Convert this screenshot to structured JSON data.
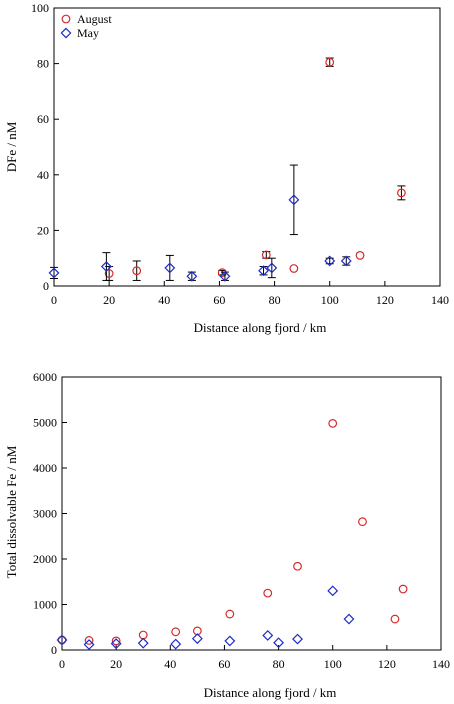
{
  "chart_data": [
    {
      "type": "scatter",
      "title": "",
      "xlabel": "Distance along fjord / km",
      "ylabel": "DFe / nM",
      "xlim": [
        0,
        140
      ],
      "ylim": [
        0,
        100
      ],
      "xticks": [
        0,
        20,
        40,
        60,
        80,
        100,
        120,
        140
      ],
      "yticks": [
        0,
        20,
        40,
        60,
        80,
        100
      ],
      "legend": "top-left",
      "series": [
        {
          "name": "August",
          "marker": "circle",
          "color": "#d42a2a",
          "points": [
            {
              "x": 20,
              "y": 4.5,
              "err": 2.5
            },
            {
              "x": 30,
              "y": 5.5,
              "err": 3.5
            },
            {
              "x": 61,
              "y": 4.8,
              "err": 0.8
            },
            {
              "x": 77,
              "y": 11.2,
              "err": 1.2
            },
            {
              "x": 87,
              "y": 6.3,
              "err": 0
            },
            {
              "x": 100,
              "y": 80.5,
              "err": 1.5
            },
            {
              "x": 111,
              "y": 11,
              "err": 0
            },
            {
              "x": 126,
              "y": 33.5,
              "err": 2.5
            }
          ]
        },
        {
          "name": "May",
          "marker": "diamond",
          "color": "#1f2cc8",
          "points": [
            {
              "x": 0,
              "y": 4.7,
              "err": 2
            },
            {
              "x": 19,
              "y": 7,
              "err": 5
            },
            {
              "x": 42,
              "y": 6.5,
              "err": 4.5
            },
            {
              "x": 50,
              "y": 3.5,
              "err": 1.5
            },
            {
              "x": 62,
              "y": 3.5,
              "err": 1.5
            },
            {
              "x": 76,
              "y": 5.5,
              "err": 1.5
            },
            {
              "x": 79,
              "y": 6.5,
              "err": 3.5
            },
            {
              "x": 87,
              "y": 31,
              "err": 12.5
            },
            {
              "x": 100,
              "y": 9,
              "err": 1
            },
            {
              "x": 106,
              "y": 9,
              "err": 1.5
            }
          ]
        }
      ]
    },
    {
      "type": "scatter",
      "title": "",
      "xlabel": "Distance along fjord / km",
      "ylabel": "Total dissolvable Fe / nM",
      "xlim": [
        0,
        140
      ],
      "ylim": [
        0,
        6000
      ],
      "xticks": [
        0,
        20,
        40,
        60,
        80,
        100,
        120,
        140
      ],
      "yticks": [
        0,
        1000,
        2000,
        3000,
        4000,
        5000,
        6000
      ],
      "series": [
        {
          "marker": "circle",
          "color": "#d42a2a",
          "points": [
            {
              "x": 0,
              "y": 220
            },
            {
              "x": 10,
              "y": 210
            },
            {
              "x": 20,
              "y": 200
            },
            {
              "x": 30,
              "y": 330
            },
            {
              "x": 42,
              "y": 400
            },
            {
              "x": 50,
              "y": 420
            },
            {
              "x": 62,
              "y": 790
            },
            {
              "x": 76,
              "y": 1250
            },
            {
              "x": 87,
              "y": 1840
            },
            {
              "x": 100,
              "y": 4980
            },
            {
              "x": 111,
              "y": 2820
            },
            {
              "x": 123,
              "y": 680
            },
            {
              "x": 126,
              "y": 1340
            }
          ]
        },
        {
          "marker": "diamond",
          "color": "#1f2cc8",
          "points": [
            {
              "x": 0,
              "y": 220
            },
            {
              "x": 10,
              "y": 120
            },
            {
              "x": 20,
              "y": 140
            },
            {
              "x": 30,
              "y": 150
            },
            {
              "x": 42,
              "y": 130
            },
            {
              "x": 50,
              "y": 250
            },
            {
              "x": 62,
              "y": 200
            },
            {
              "x": 76,
              "y": 320
            },
            {
              "x": 80,
              "y": 160
            },
            {
              "x": 87,
              "y": 240
            },
            {
              "x": 100,
              "y": 1300
            },
            {
              "x": 106,
              "y": 680
            }
          ]
        }
      ]
    }
  ]
}
